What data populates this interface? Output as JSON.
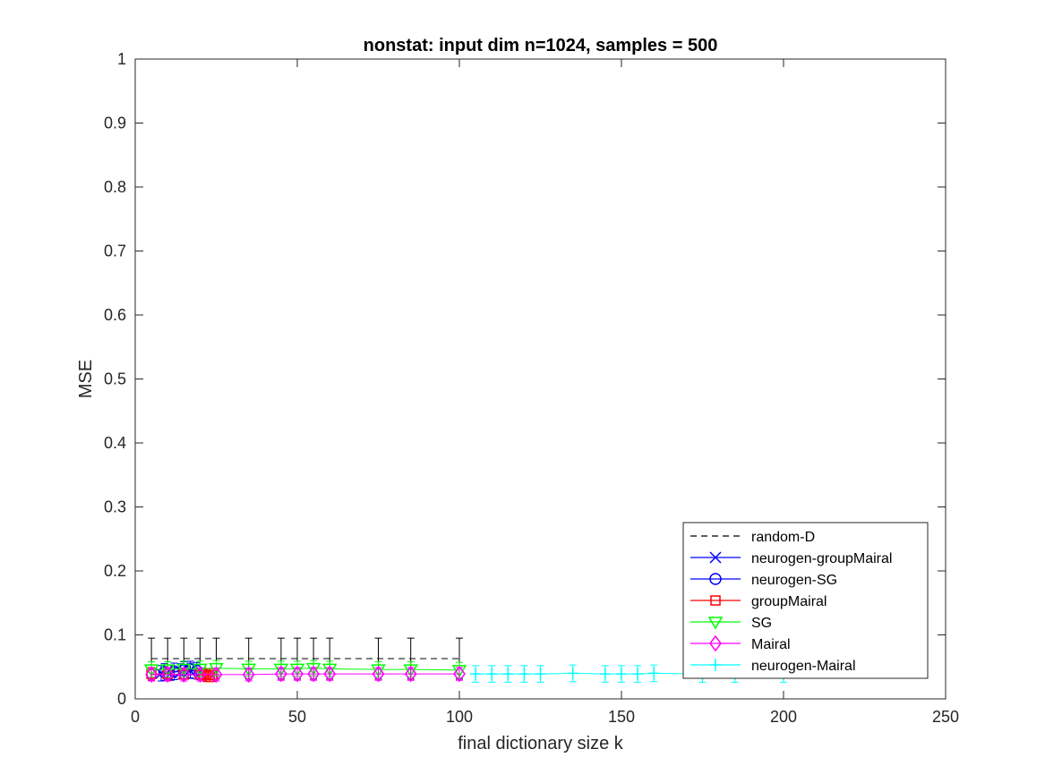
{
  "chart_data": {
    "type": "line",
    "title": "nonstat: input dim n=1024, samples = 500",
    "xlabel": "final dictionary size k",
    "ylabel": "MSE",
    "xlim": [
      0,
      250
    ],
    "ylim": [
      0,
      1
    ],
    "xticks": [
      "0",
      "50",
      "100",
      "150",
      "200",
      "250"
    ],
    "yticks": [
      "0",
      "0.1",
      "0.2",
      "0.3",
      "0.4",
      "0.5",
      "0.6",
      "0.7",
      "0.8",
      "0.9",
      "1"
    ],
    "legend_position": "bottom-right",
    "series": [
      {
        "name": "random-D",
        "color": "#000000",
        "style": "dashed",
        "marker": "none",
        "x": [
          5,
          10,
          15,
          20,
          25,
          35,
          45,
          50,
          55,
          60,
          75,
          85,
          100
        ],
        "y": [
          0.063,
          0.063,
          0.063,
          0.063,
          0.063,
          0.063,
          0.063,
          0.063,
          0.063,
          0.063,
          0.063,
          0.063,
          0.063
        ],
        "err": [
          0.032,
          0.032,
          0.032,
          0.032,
          0.032,
          0.032,
          0.032,
          0.032,
          0.032,
          0.032,
          0.032,
          0.032,
          0.032
        ]
      },
      {
        "name": "neurogen-groupMairal",
        "color": "#0000ff",
        "style": "solid",
        "marker": "x",
        "x": [
          8,
          11,
          14,
          17,
          20
        ],
        "y": [
          0.04,
          0.041,
          0.043,
          0.044,
          0.042
        ],
        "err": [
          0.012,
          0.012,
          0.012,
          0.012,
          0.012
        ]
      },
      {
        "name": "neurogen-SG",
        "color": "#0000ff",
        "style": "solid",
        "marker": "circle",
        "x": [
          9,
          12,
          15,
          17,
          19
        ],
        "y": [
          0.042,
          0.043,
          0.045,
          0.046,
          0.044
        ],
        "err": [
          0.013,
          0.013,
          0.013,
          0.013,
          0.013
        ]
      },
      {
        "name": "groupMairal",
        "color": "#ff0000",
        "style": "solid",
        "marker": "square",
        "x": [
          5,
          10,
          15,
          20,
          21,
          22,
          23,
          24
        ],
        "y": [
          0.039,
          0.039,
          0.038,
          0.038,
          0.038,
          0.037,
          0.037,
          0.037
        ],
        "err": [
          0.01,
          0.01,
          0.01,
          0.01,
          0.01,
          0.01,
          0.01,
          0.01
        ]
      },
      {
        "name": "SG",
        "color": "#00ff00",
        "style": "solid",
        "marker": "triangle-down",
        "x": [
          5,
          10,
          15,
          20,
          25,
          35,
          45,
          50,
          55,
          60,
          75,
          85,
          100
        ],
        "y": [
          0.046,
          0.046,
          0.047,
          0.047,
          0.048,
          0.047,
          0.047,
          0.047,
          0.048,
          0.047,
          0.046,
          0.046,
          0.045
        ],
        "err": [
          0.012,
          0.012,
          0.012,
          0.012,
          0.012,
          0.012,
          0.012,
          0.012,
          0.012,
          0.012,
          0.012,
          0.012,
          0.012
        ]
      },
      {
        "name": "Mairal",
        "color": "#ff00ff",
        "style": "solid",
        "marker": "diamond",
        "x": [
          5,
          10,
          15,
          20,
          25,
          35,
          45,
          50,
          55,
          60,
          75,
          85,
          100
        ],
        "y": [
          0.038,
          0.038,
          0.038,
          0.038,
          0.038,
          0.038,
          0.039,
          0.039,
          0.039,
          0.039,
          0.039,
          0.039,
          0.039
        ],
        "err": [
          0.01,
          0.01,
          0.01,
          0.01,
          0.01,
          0.01,
          0.01,
          0.01,
          0.01,
          0.01,
          0.01,
          0.01,
          0.01
        ]
      },
      {
        "name": "neurogen-Mairal",
        "color": "#00ffff",
        "style": "solid",
        "marker": "plus",
        "x": [
          105,
          110,
          115,
          120,
          125,
          135,
          145,
          150,
          155,
          160,
          175,
          185,
          200
        ],
        "y": [
          0.039,
          0.039,
          0.039,
          0.039,
          0.039,
          0.04,
          0.039,
          0.039,
          0.039,
          0.04,
          0.039,
          0.039,
          0.039
        ],
        "err": [
          0.013,
          0.013,
          0.013,
          0.013,
          0.013,
          0.013,
          0.013,
          0.013,
          0.013,
          0.013,
          0.013,
          0.013,
          0.013
        ]
      }
    ]
  }
}
